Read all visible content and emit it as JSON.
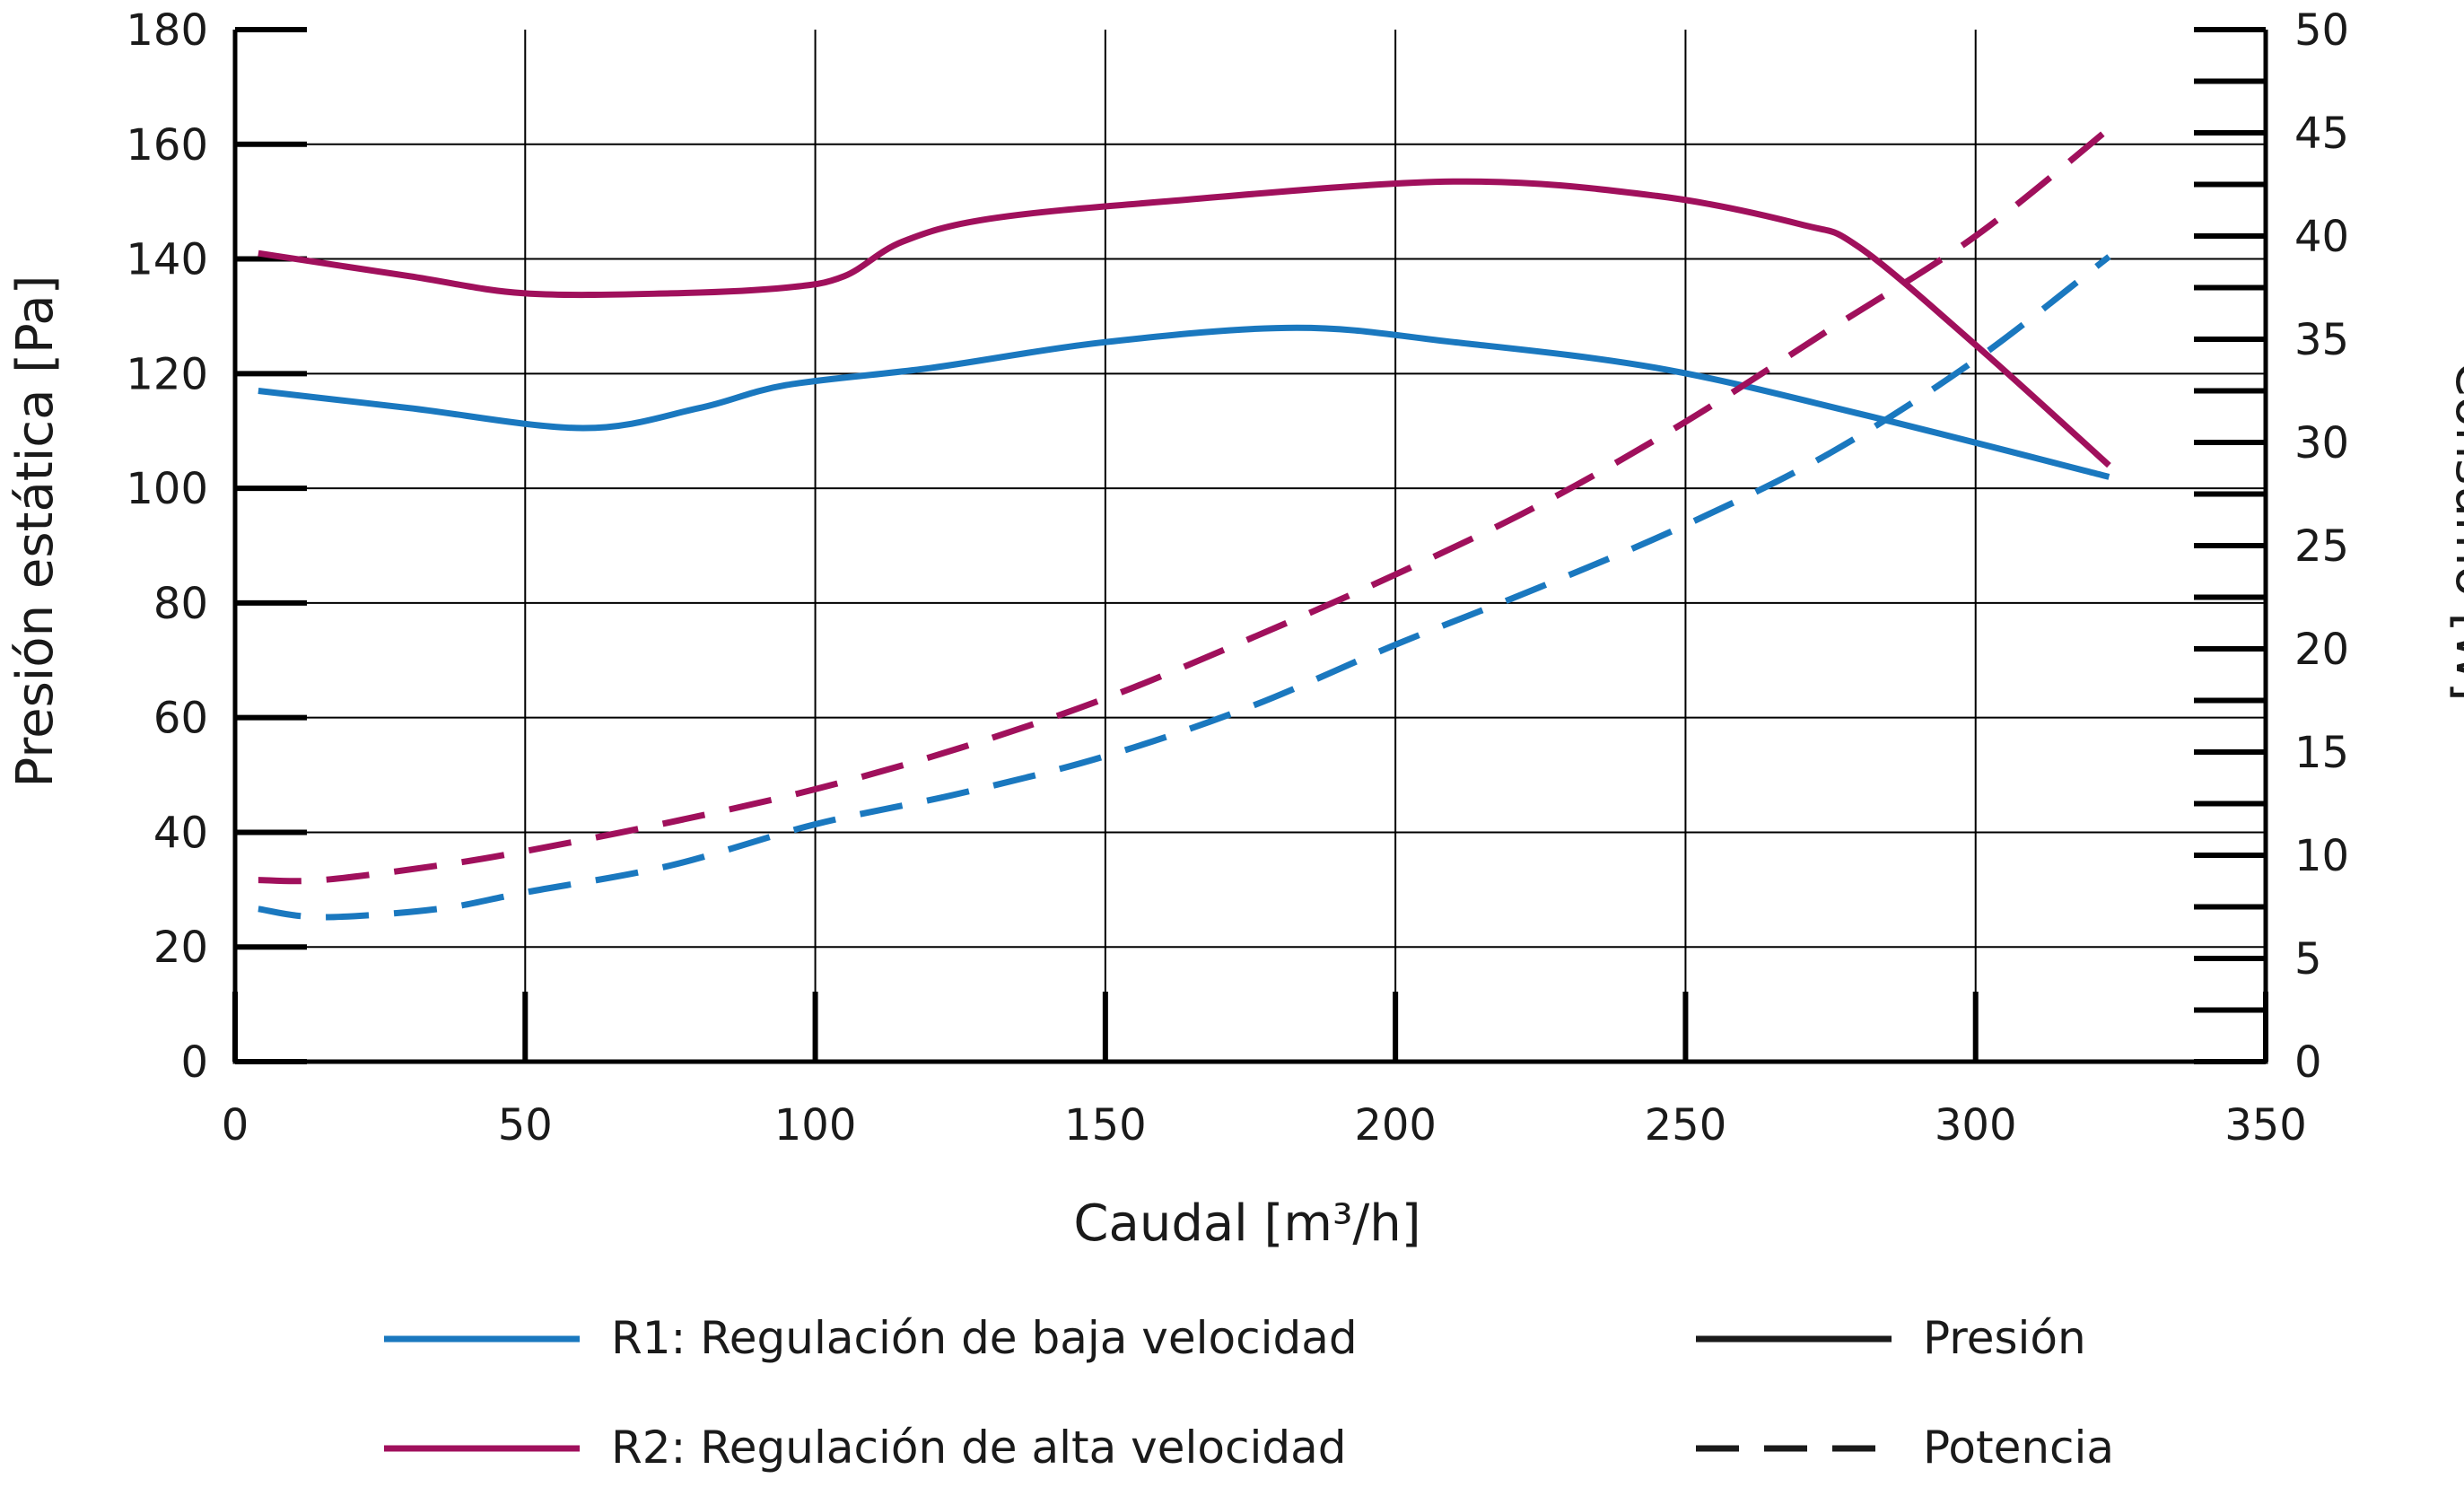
{
  "chart_data": {
    "type": "line",
    "xlabel": "Caudal [m³/h]",
    "ylabel_left": "Presión estática [Pa]",
    "ylabel_right": "Consumo [W]",
    "xlim": [
      0,
      350
    ],
    "ylim_left": [
      0,
      180
    ],
    "ylim_right": [
      0,
      50
    ],
    "x_ticks": [
      "0",
      "50",
      "100",
      "150",
      "200",
      "250",
      "300",
      "350"
    ],
    "y_left_ticks": [
      "0",
      "20",
      "40",
      "60",
      "80",
      "100",
      "120",
      "140",
      "160",
      "180"
    ],
    "y_right_ticks": [
      "0",
      "5",
      "10",
      "15",
      "20",
      "25",
      "30",
      "35",
      "40",
      "45",
      "50"
    ],
    "grid": true,
    "colors": {
      "R1": "#1a78bf",
      "R2": "#a0105c",
      "axis": "#000000",
      "grid": "#000000"
    },
    "series": [
      {
        "name": "R1: Regulación de baja velocidad",
        "measure": "Presión",
        "axis": "left",
        "style": "solid",
        "color": "#1a78bf",
        "x": [
          4,
          30,
          60,
          80,
          95,
          120,
          150,
          183,
          210,
          245,
          280,
          323
        ],
        "y": [
          117,
          114,
          110.5,
          114,
          118,
          121,
          125.5,
          128,
          125.5,
          121,
          113,
          102
        ]
      },
      {
        "name": "R2: Regulación de alta velocidad",
        "measure": "Presión",
        "axis": "left",
        "style": "solid",
        "color": "#a0105c",
        "x": [
          4,
          30,
          50,
          75,
          95,
          105,
          115,
          130,
          160,
          210,
          245,
          270,
          280,
          300,
          323
        ],
        "y": [
          141,
          137,
          134,
          134,
          135,
          137,
          143,
          147,
          150,
          153.5,
          151,
          146,
          142,
          125,
          104
        ]
      },
      {
        "name": "R1: Regulación de baja velocidad",
        "measure": "Potencia",
        "axis": "right",
        "style": "dashed",
        "color": "#1a78bf",
        "x": [
          4,
          15,
          35,
          50,
          75,
          100,
          125,
          150,
          175,
          200,
          225,
          250,
          275,
          300,
          323
        ],
        "y": [
          7.4,
          7.0,
          7.4,
          8.2,
          9.5,
          11.5,
          13.0,
          14.8,
          17.2,
          20.2,
          23.0,
          26.0,
          29.5,
          34.0,
          39.0
        ]
      },
      {
        "name": "R2: Regulación de alta velocidad",
        "measure": "Potencia",
        "axis": "right",
        "style": "dashed",
        "color": "#a0105c",
        "x": [
          4,
          15,
          35,
          50,
          75,
          100,
          125,
          150,
          175,
          200,
          225,
          250,
          275,
          300,
          323
        ],
        "y": [
          8.8,
          8.8,
          9.5,
          10.2,
          11.6,
          13.2,
          15.2,
          17.6,
          20.5,
          23.6,
          27.0,
          31.0,
          35.5,
          40.0,
          45.2
        ]
      }
    ],
    "legend": {
      "placement": "bottom",
      "items": [
        {
          "label": "R1: Regulación de baja velocidad",
          "color": "#1a78bf",
          "style": "solid"
        },
        {
          "label": "Presión",
          "color": "#1a1a1a",
          "style": "solid"
        },
        {
          "label": "R2: Regulación de alta velocidad",
          "color": "#a0105c",
          "style": "solid"
        },
        {
          "label": "Potencia",
          "color": "#1a1a1a",
          "style": "dashed"
        }
      ]
    }
  }
}
